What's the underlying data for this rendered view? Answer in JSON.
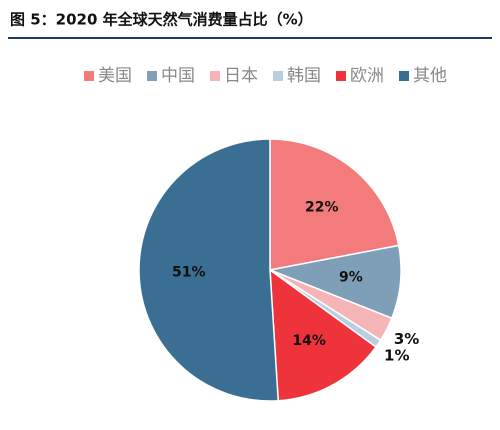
{
  "chart_data": {
    "type": "pie",
    "title": "图 5：2020 年全球天然气消费量占比（%）",
    "categories": [
      "美国",
      "中国",
      "日本",
      "韩国",
      "欧洲",
      "其他"
    ],
    "values": [
      22,
      9,
      3,
      1,
      14,
      51
    ],
    "value_labels": [
      "22%",
      "9%",
      "3%",
      "1%",
      "14%",
      "51%"
    ],
    "colors": [
      "#f47b7c",
      "#7f9fb8",
      "#f5b4b6",
      "#b9cfe0",
      "#ef333a",
      "#3b6e93"
    ],
    "legend": "top"
  }
}
